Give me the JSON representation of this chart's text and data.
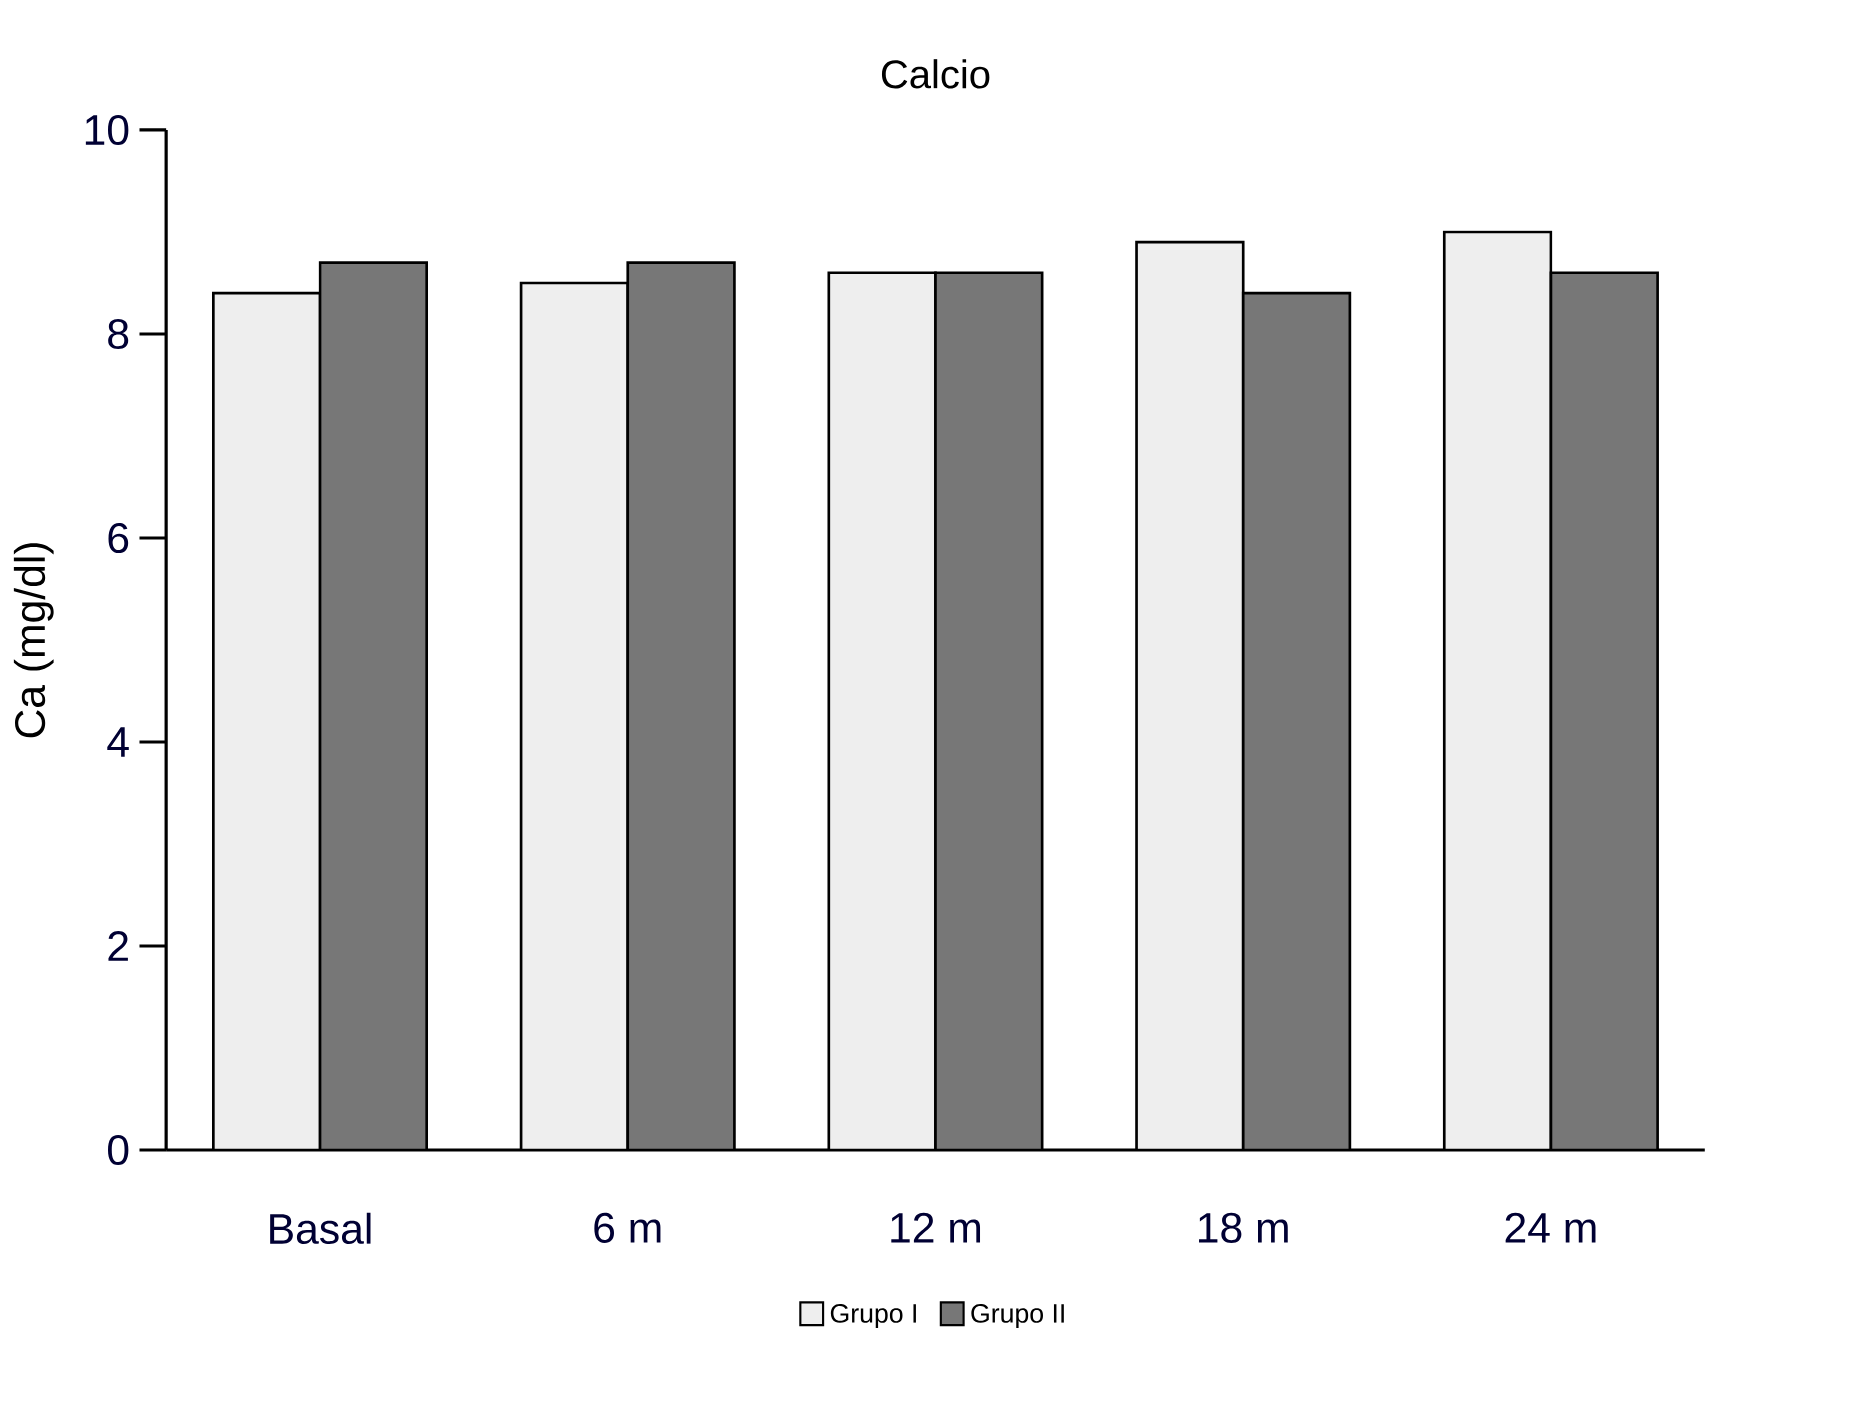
{
  "chart_data": {
    "type": "bar",
    "title": "Calcio",
    "ylabel": "Ca (mg/dl)",
    "categories": [
      "Basal",
      "6 m",
      "12 m",
      "18 m",
      "24 m"
    ],
    "series": [
      {
        "name": "Grupo I",
        "color": "#eeeeee",
        "values": [
          8.4,
          8.5,
          8.6,
          8.9,
          9.0
        ]
      },
      {
        "name": "Grupo II",
        "color": "#777777",
        "values": [
          8.7,
          8.7,
          8.6,
          8.4,
          8.6
        ]
      }
    ],
    "ylim": [
      0,
      10
    ],
    "yticks": [
      0,
      2,
      4,
      6,
      8,
      10
    ],
    "legend": "bottom",
    "grid": false
  }
}
